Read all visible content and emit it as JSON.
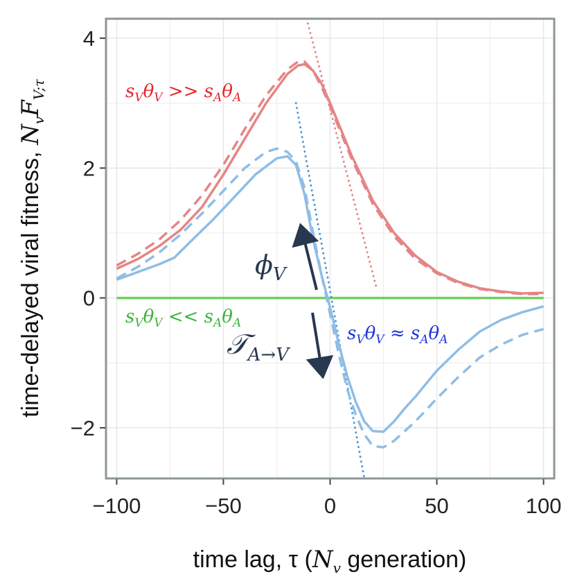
{
  "chart_data": {
    "type": "line",
    "title": "",
    "xlabel": "time lag, τ (",
    "xlabel_var": "N",
    "xlabel_sub": "v",
    "xlabel_end": " generation)",
    "ylabel": "time-delayed viral fitness,",
    "ylabel_var": "N",
    "ylabel_var_sub": "v",
    "ylabel_F": "F",
    "ylabel_F_sub": "V;τ",
    "xlim": [
      -105,
      105
    ],
    "ylim": [
      -2.78,
      4.3
    ],
    "xticks": [
      -100,
      -50,
      0,
      50,
      100
    ],
    "xtick_labels": [
      "−100",
      "−50",
      "0",
      "50",
      "100"
    ],
    "yticks": [
      -2,
      0,
      2,
      4
    ],
    "ytick_labels": [
      "−2",
      "0",
      "2",
      "4"
    ],
    "grid": true,
    "colors": {
      "red": "#e58585",
      "red_text": "#e5262c",
      "blue": "#8fbde6",
      "blue_dotted": "#4d94d6",
      "blue_text": "#1e35d9",
      "green": "#6ad45a",
      "green_text": "#3db33a",
      "arrow": "#27384f",
      "border": "#8c9699"
    },
    "series": [
      {
        "name": "red-solid",
        "color": "#e58585",
        "dash": "solid",
        "x": [
          -100,
          -90,
          -80,
          -70,
          -60,
          -50,
          -40,
          -30,
          -20,
          -15,
          -12,
          -8,
          -4,
          0,
          5,
          10,
          15,
          20,
          30,
          40,
          50,
          60,
          70,
          80,
          90,
          100
        ],
        "y": [
          0.45,
          0.6,
          0.8,
          1.05,
          1.4,
          1.9,
          2.45,
          3.0,
          3.45,
          3.58,
          3.6,
          3.5,
          3.3,
          3.0,
          2.6,
          2.2,
          1.85,
          1.5,
          1.0,
          0.65,
          0.4,
          0.25,
          0.15,
          0.1,
          0.07,
          0.08
        ]
      },
      {
        "name": "red-dashed",
        "color": "#e58585",
        "dash": "dashed",
        "x": [
          -100,
          -90,
          -80,
          -70,
          -60,
          -50,
          -40,
          -30,
          -20,
          -15,
          -12,
          -8,
          -4,
          0,
          5,
          10,
          15,
          20,
          30,
          40,
          50,
          60,
          70,
          80,
          90,
          100
        ],
        "y": [
          0.5,
          0.68,
          0.9,
          1.2,
          1.58,
          2.05,
          2.6,
          3.12,
          3.52,
          3.64,
          3.64,
          3.5,
          3.25,
          2.95,
          2.55,
          2.15,
          1.8,
          1.45,
          0.95,
          0.6,
          0.38,
          0.23,
          0.14,
          0.09,
          0.06,
          0.06
        ]
      },
      {
        "name": "red-dotted",
        "color": "#e58585",
        "dash": "dotted",
        "x": [
          -11,
          22
        ],
        "y": [
          4.3,
          0.12
        ]
      },
      {
        "name": "blue-solid",
        "color": "#8fbde6",
        "dash": "solid",
        "x": [
          -100,
          -90,
          -80,
          -73,
          -65,
          -55,
          -45,
          -35,
          -25,
          -20,
          -16,
          -12,
          -8,
          -4,
          0,
          4,
          8,
          12,
          16,
          20,
          25,
          30,
          35,
          40,
          50,
          60,
          70,
          80,
          90,
          100
        ],
        "y": [
          0.28,
          0.4,
          0.52,
          0.62,
          0.88,
          1.2,
          1.55,
          1.9,
          2.15,
          2.18,
          2.05,
          1.6,
          0.9,
          0.35,
          -0.15,
          -0.7,
          -1.2,
          -1.6,
          -1.9,
          -2.05,
          -2.06,
          -1.9,
          -1.7,
          -1.52,
          -1.12,
          -0.8,
          -0.52,
          -0.34,
          -0.22,
          -0.13
        ]
      },
      {
        "name": "blue-dashed",
        "color": "#8fbde6",
        "dash": "dashed",
        "x": [
          -100,
          -90,
          -80,
          -70,
          -60,
          -50,
          -40,
          -30,
          -25,
          -20,
          -16,
          -12,
          -8,
          -4,
          0,
          4,
          8,
          12,
          16,
          20,
          25,
          30,
          40,
          50,
          60,
          70,
          80,
          90,
          100
        ],
        "y": [
          0.3,
          0.48,
          0.7,
          0.98,
          1.3,
          1.65,
          2.0,
          2.25,
          2.3,
          2.25,
          2.1,
          1.7,
          1.0,
          0.35,
          -0.25,
          -0.85,
          -1.4,
          -1.8,
          -2.1,
          -2.28,
          -2.3,
          -2.2,
          -1.9,
          -1.55,
          -1.22,
          -0.92,
          -0.72,
          -0.57,
          -0.48
        ]
      },
      {
        "name": "blue-dotted",
        "color": "#4d94d6",
        "dash": "dotted",
        "x": [
          -16,
          16
        ],
        "y": [
          3.0,
          -2.78
        ]
      },
      {
        "name": "green-solid",
        "color": "#6ad45a",
        "dash": "solid",
        "x": [
          -100,
          100
        ],
        "y": [
          0,
          0
        ]
      }
    ],
    "annotations": {
      "red_label": {
        "s1": "s",
        "sub1": "V",
        "th1": "θ",
        "sub2": "V",
        "rel": " >> ",
        "s2": "s",
        "sub3": "A",
        "th2": "θ",
        "sub4": "A"
      },
      "green_label": {
        "s1": "s",
        "sub1": "V",
        "th1": "θ",
        "sub2": "V",
        "rel": " << ",
        "s2": "s",
        "sub3": "A",
        "th2": "θ",
        "sub4": "A"
      },
      "blue_label": {
        "s1": "s",
        "sub1": "V",
        "th1": "θ",
        "sub2": "V",
        "rel": " ≈ ",
        "s2": "s",
        "sub3": "A",
        "th2": "θ",
        "sub4": "A"
      },
      "phi_label": {
        "sym": "ϕ",
        "sub": "V"
      },
      "transfer_label": {
        "sym": "𝒯",
        "sub": "A→V"
      }
    }
  }
}
